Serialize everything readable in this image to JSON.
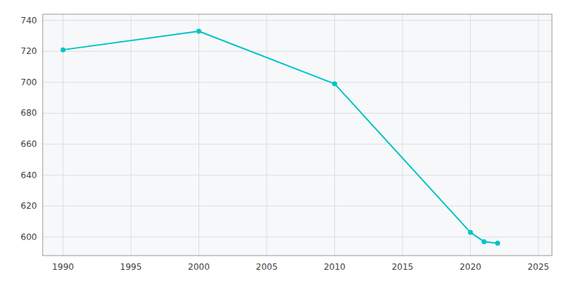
{
  "chart_data": {
    "type": "line",
    "x": [
      1990,
      2000,
      2010,
      2020,
      2021,
      2022
    ],
    "values": [
      721,
      733,
      699,
      603,
      597,
      596
    ],
    "color": "#00C5C5",
    "marker": "circle",
    "xlim": [
      1988.5,
      2026
    ],
    "ylim": [
      588,
      744
    ],
    "xticks": [
      1990,
      1995,
      2000,
      2005,
      2010,
      2015,
      2020,
      2025
    ],
    "yticks": [
      600,
      620,
      640,
      660,
      680,
      700,
      720,
      740
    ],
    "grid": true
  }
}
